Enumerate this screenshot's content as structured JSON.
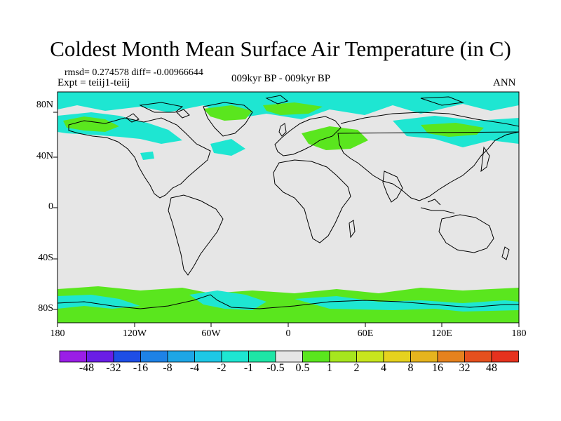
{
  "title": "Coldest Month Mean Surface Air Temperature (in C)",
  "stats_line": "rmsd= 0.274578 diff= -0.00966644",
  "experiment_line": "Expt = teiij1-teiij",
  "period_line": "009kyr BP - 009kyr BP",
  "season_label": "ANN",
  "map": {
    "projection": "cylindrical equidistant",
    "lon_range": [
      -180,
      180
    ],
    "lat_range": [
      -90,
      90
    ],
    "x_tick_labels": [
      "180",
      "120W",
      "60W",
      "0",
      "60E",
      "120E",
      "180"
    ],
    "x_tick_values": [
      -180,
      -120,
      -60,
      0,
      60,
      120,
      180
    ],
    "y_tick_labels": [
      "80N",
      "40N",
      "0",
      "40S",
      "80S"
    ],
    "y_tick_values": [
      80,
      40,
      0,
      -40,
      -80
    ],
    "background_color": "#e6e6e6",
    "coastline_color": "#000000"
  },
  "colorbar": {
    "colors": [
      "#9a1ee6",
      "#6a1ee6",
      "#1e4ee6",
      "#1e82e6",
      "#1ea6e6",
      "#1ec8e6",
      "#1ee6d2",
      "#1ee6a6",
      "#e6e6e6",
      "#5ae61e",
      "#a6e61e",
      "#c8e61e",
      "#e6d21e",
      "#e6b41e",
      "#e6821e",
      "#e6501e",
      "#e6321e"
    ],
    "labels": [
      "-48",
      "-32",
      "-16",
      "-8",
      "-4",
      "-2",
      "-1",
      "-0.5",
      "0.5",
      "1",
      "2",
      "4",
      "8",
      "16",
      "32",
      "48"
    ]
  }
}
